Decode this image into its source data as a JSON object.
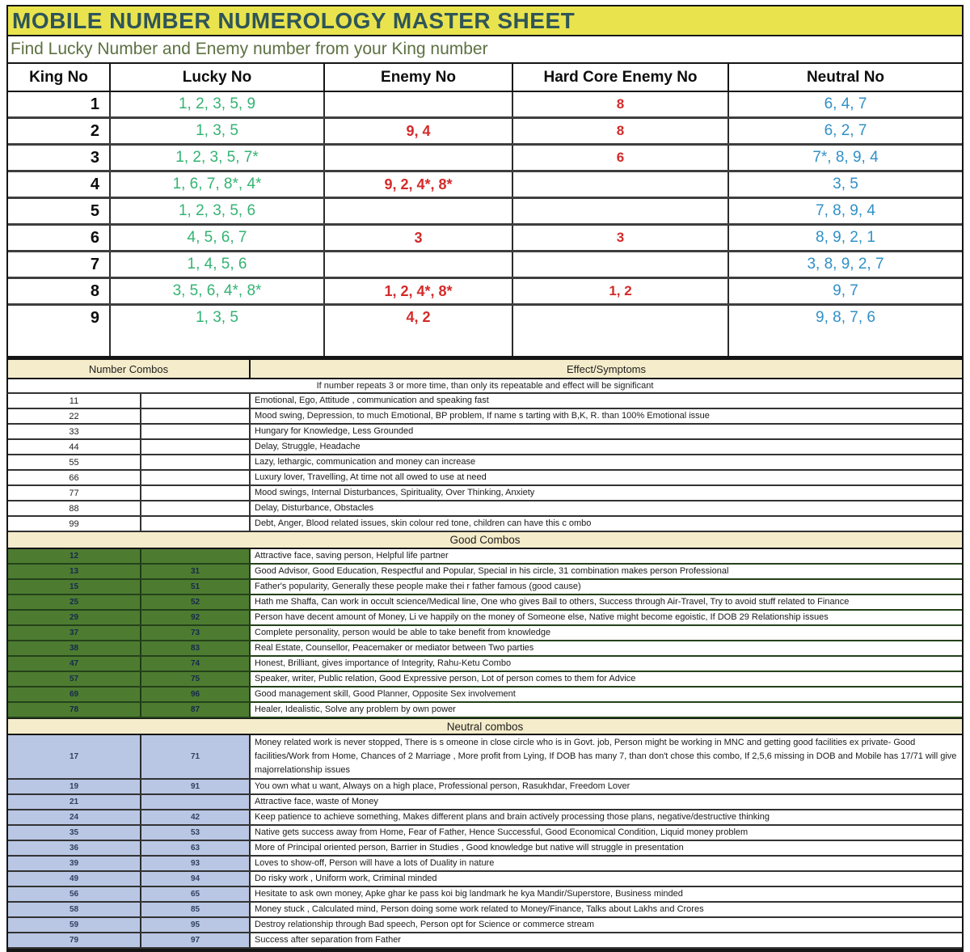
{
  "title": "MOBILE NUMBER NUMEROLOGY MASTER SHEET",
  "subtitle": "Find Lucky Number and Enemy number from your King number",
  "colors": {
    "title_bg": "#e9e44e",
    "title_text": "#2f5558",
    "subtitle_text": "#5d7142",
    "lucky_green": "#34b373",
    "enemy_red": "#d42a2a",
    "neutral_blue": "#3090c7",
    "section_cream": "#f5eccb",
    "good_row_green": "#4d7c31",
    "neutral_row_blue": "#b9c7e4"
  },
  "king_table": {
    "headers": [
      "King No",
      "Lucky No",
      "Enemy No",
      "Hard Core Enemy No",
      "Neutral No"
    ],
    "rows": [
      {
        "king": "1",
        "lucky": "1, 2, 3, 5, 9",
        "enemy": "",
        "hardcore": "8",
        "neutral": "6, 4, 7"
      },
      {
        "king": "2",
        "lucky": "1, 3, 5",
        "enemy": "9, 4",
        "hardcore": "8",
        "neutral": "6, 2, 7"
      },
      {
        "king": "3",
        "lucky": "1, 2, 3, 5, 7*",
        "enemy": "",
        "hardcore": "6",
        "neutral": "7*, 8, 9, 4"
      },
      {
        "king": "4",
        "lucky": "1, 6, 7, 8*, 4*",
        "enemy": "9, 2, 4*, 8*",
        "hardcore": "",
        "neutral": "3, 5"
      },
      {
        "king": "5",
        "lucky": "1, 2, 3, 5, 6",
        "enemy": "",
        "hardcore": "",
        "neutral": "7, 8, 9, 4"
      },
      {
        "king": "6",
        "lucky": "4, 5, 6, 7",
        "enemy": "3",
        "hardcore": "3",
        "neutral": "8, 9, 2, 1"
      },
      {
        "king": "7",
        "lucky": "1, 4, 5, 6",
        "enemy": "",
        "hardcore": "",
        "neutral": "3, 8, 9, 2, 7"
      },
      {
        "king": "8",
        "lucky": "3, 5, 6, 4*, 8*",
        "enemy": "1, 2, 4*, 8*",
        "hardcore": "1, 2",
        "neutral": "9, 7"
      },
      {
        "king": "9",
        "lucky": "1, 3, 5",
        "enemy": "4, 2",
        "hardcore": "",
        "neutral": "9, 8, 7, 6"
      }
    ]
  },
  "combos": {
    "header_left": "Number Combos",
    "header_right": "Effect/Symptoms",
    "note": "If number repeats 3 or more time, than only its repeatable and effect will be significant",
    "repeat_rows": [
      {
        "c1": "11",
        "c2": "",
        "effect": "Emotional, Ego, Attitude , communication and speaking fast"
      },
      {
        "c1": "22",
        "c2": "",
        "effect": "Mood swing, Depression, to much Emotional, BP problem,  If name s tarting with B,K, R. than 100% Emotional issue"
      },
      {
        "c1": "33",
        "c2": "",
        "effect": "Hungary for Knowledge, Less Grounded"
      },
      {
        "c1": "44",
        "c2": "",
        "effect": "Delay, Struggle, Headache"
      },
      {
        "c1": "55",
        "c2": "",
        "effect": "Lazy, lethargic, communication and money can increase"
      },
      {
        "c1": "66",
        "c2": "",
        "effect": "Luxury lover, Travelling, At time not all owed to use at need"
      },
      {
        "c1": "77",
        "c2": "",
        "effect": "Mood swings, Internal Disturbances, Spirituality, Over Thinking, Anxiety"
      },
      {
        "c1": "88",
        "c2": "",
        "effect": "Delay, Disturbance, Obstacles"
      },
      {
        "c1": "99",
        "c2": "",
        "effect": "Debt, Anger, Blood related issues, skin colour red tone,  children can have this c ombo"
      }
    ],
    "good_header": "Good Combos",
    "good_rows": [
      {
        "c1": "12",
        "c2": "",
        "effect": "Attractive face, saving person,  Helpful life partner"
      },
      {
        "c1": "13",
        "c2": "31",
        "effect": "Good Advisor, Good Education,  Respectful and Popular, Special in his circle, 31 combination makes person Professional"
      },
      {
        "c1": "15",
        "c2": "51",
        "effect": "Father's popularity, Generally these people make thei r father famous (good cause)"
      },
      {
        "c1": "25",
        "c2": "52",
        "effect": "Hath me Shaffa, Can work in occult science/Medical line, One who gives Bail to others, Success through Air-Travel, Try to avoid stuff related to Finance"
      },
      {
        "c1": "29",
        "c2": "92",
        "effect": "Person have decent amount of Money, Li ve happily on the money of Someone  else, Native might become egoistic, If DOB 29 Relationship issues"
      },
      {
        "c1": "37",
        "c2": "73",
        "effect": "Complete personality, person would be able to take benefit from knowledge"
      },
      {
        "c1": "38",
        "c2": "83",
        "effect": "Real Estate, Counsellor, Peacemaker or mediator between Two parties"
      },
      {
        "c1": "47",
        "c2": "74",
        "effect": "Honest, Brilliant, gives importance of Integrity, Rahu-Ketu Combo"
      },
      {
        "c1": "57",
        "c2": "75",
        "effect": "Speaker, writer, Public relation, Good Expressive person, Lot of person  comes to them for Advice"
      },
      {
        "c1": "69",
        "c2": "96",
        "effect": "Good management skill, Good Planner, Opposite Sex involvement"
      },
      {
        "c1": "78",
        "c2": "87",
        "effect": "Healer, Idealistic, Solve any problem by own power"
      }
    ],
    "neutral_header": "Neutral combos",
    "neutral_rows": [
      {
        "c1": "17",
        "c2": "71",
        "effect": "Money related work is never stopped, There is s omeone in close circle who is in Govt. job, Person might be working in MNC and getting good facilities  ex private- Good facilities/Work from Home, Chances of 2 Marriage , More profit from Lying, If DOB has many 7, than  don't chose this combo, If 2,5,6 missing in DOB and Mobile has 17/71 will give majorrelationship issues"
      },
      {
        "c1": "19",
        "c2": "91",
        "effect": "You own what u want, Always on a high place, Professional person, Rasukhdar, Freedom Lover"
      },
      {
        "c1": "21",
        "c2": "",
        "effect": "Attractive face, waste of Money"
      },
      {
        "c1": "24",
        "c2": "42",
        "effect": "Keep patience to achieve something,  Makes different plans and brain actively processing those plans, negative/destructive thinking"
      },
      {
        "c1": "35",
        "c2": "53",
        "effect": "Native gets success away from Home, Fear of Father, Hence Successful, Good Economical Condition, Liquid money problem"
      },
      {
        "c1": "36",
        "c2": "63",
        "effect": "More of Principal oriented person, Barrier in Studies , Good knowledge but native will struggle in presentation"
      },
      {
        "c1": "39",
        "c2": "93",
        "effect": "Loves to show-off, Person will have a lots of Duality in nature"
      },
      {
        "c1": "49",
        "c2": "94",
        "effect": "Do risky work , Uniform work, Criminal minded"
      },
      {
        "c1": "56",
        "c2": "65",
        "effect": "Hesitate to ask own money, Apke ghar ke pass koi big landmark he kya Mandir/Superstore, Business minded"
      },
      {
        "c1": "58",
        "c2": "85",
        "effect": "Money stuck , Calculated mind, Person doing some work related to Money/Finance, Talks about Lakhs and Crores"
      },
      {
        "c1": "59",
        "c2": "95",
        "effect": "Destroy relationship through Bad speech, Person opt for Science or commerce stream"
      },
      {
        "c1": "79",
        "c2": "97",
        "effect": "Success after separation from Father"
      }
    ]
  }
}
